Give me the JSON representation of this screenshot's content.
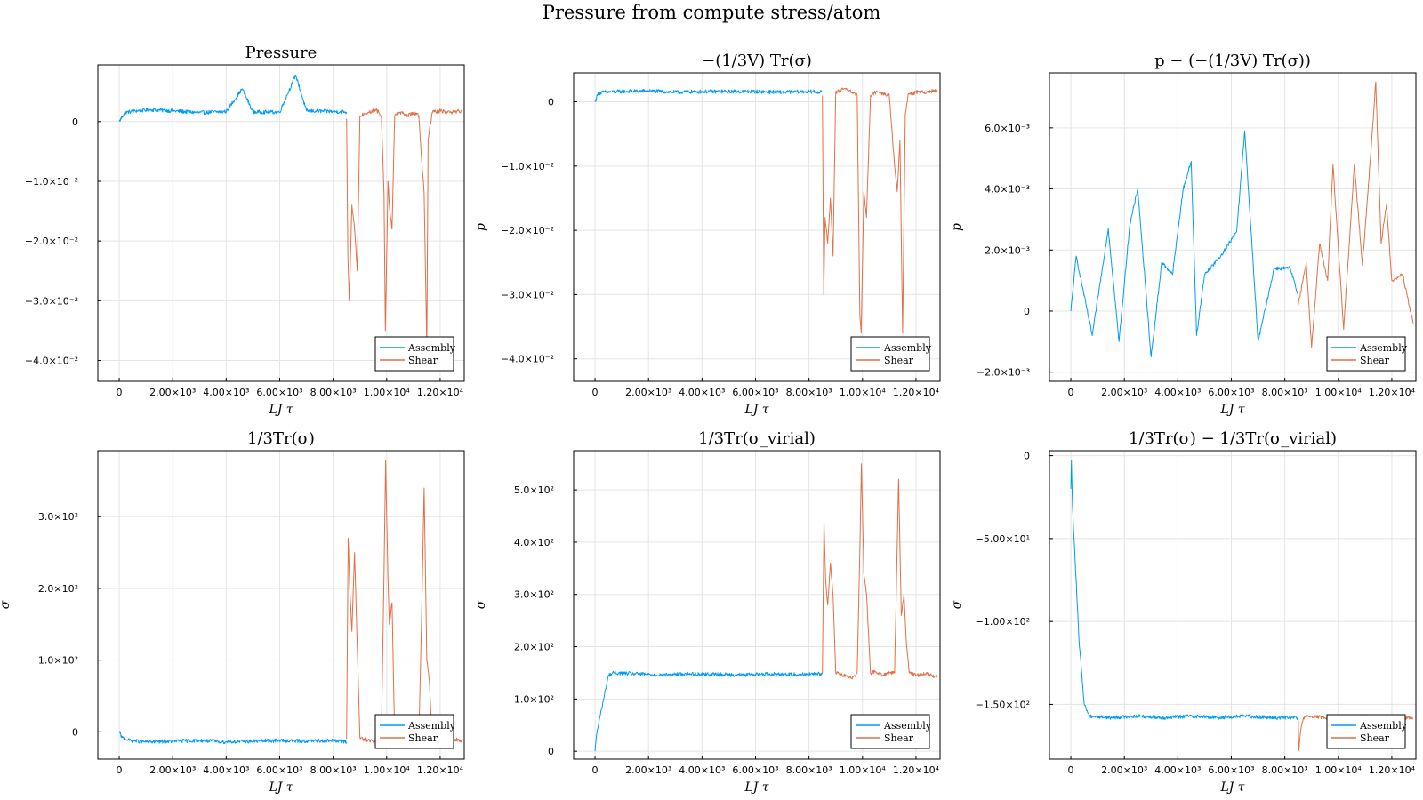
{
  "figure_title": "Pressure from compute stress/atom",
  "colors": {
    "Assembly": "#009af9",
    "Shear": "#e26f46",
    "grid": "#e5e5e5",
    "frame": "#000000"
  },
  "chart_data": [
    {
      "type": "line",
      "title": "Pressure",
      "xlabel": "LJ τ",
      "ylabel": "",
      "xlim": [
        -800,
        12900
      ],
      "ylim": [
        -0.0435,
        0.0095
      ],
      "xticks": [
        0,
        2000,
        4000,
        6000,
        8000,
        10000,
        12000
      ],
      "xtick_labels": [
        "0",
        "2.00×10³",
        "4.00×10³",
        "6.00×10³",
        "8.00×10³",
        "1.00×10⁴",
        "1.20×10⁴"
      ],
      "yticks": [
        0,
        -0.01,
        -0.02,
        -0.03,
        -0.04
      ],
      "ytick_labels": [
        "0",
        "−1.0×10⁻²",
        "−2.0×10⁻²",
        "−3.0×10⁻²",
        "−4.0×10⁻²"
      ],
      "grid": true,
      "legend": "bottom-right",
      "series": [
        {
          "name": "Assembly",
          "x": [
            0,
            200,
            600,
            1200,
            2000,
            3000,
            4000,
            4600,
            5000,
            6000,
            6600,
            7000,
            8000,
            8500
          ],
          "y": [
            0.0,
            0.0015,
            0.0018,
            0.002,
            0.0018,
            0.0015,
            0.0017,
            0.0055,
            0.0016,
            0.0016,
            0.0078,
            0.0018,
            0.0017,
            0.0016
          ]
        },
        {
          "name": "Shear",
          "x": [
            8500,
            8550,
            8600,
            8700,
            8800,
            8900,
            9000,
            9300,
            9600,
            9800,
            9900,
            9950,
            10050,
            10100,
            10200,
            10300,
            10500,
            10800,
            11000,
            11200,
            11300,
            11400,
            11500,
            11550,
            11700,
            12000,
            12400,
            12800
          ],
          "y": [
            0.0005,
            -0.023,
            -0.03,
            -0.014,
            -0.018,
            -0.025,
            0.001,
            0.0015,
            0.002,
            0.001,
            -0.012,
            -0.035,
            -0.01,
            -0.014,
            -0.018,
            0.001,
            0.0015,
            0.001,
            0.0015,
            0.001,
            -0.006,
            -0.012,
            -0.038,
            -0.003,
            0.0015,
            0.0018,
            0.0015,
            0.0018
          ]
        }
      ]
    },
    {
      "type": "line",
      "title": "−(1/3V) Tr(σ)",
      "xlabel": "LJ τ",
      "ylabel": "p",
      "xlim": [
        -800,
        12900
      ],
      "ylim": [
        -0.0435,
        0.0045
      ],
      "xticks": [
        0,
        2000,
        4000,
        6000,
        8000,
        10000,
        12000
      ],
      "xtick_labels": [
        "0",
        "2.00×10³",
        "4.00×10³",
        "6.00×10³",
        "8.00×10³",
        "1.00×10⁴",
        "1.20×10⁴"
      ],
      "yticks": [
        0,
        -0.01,
        -0.02,
        -0.03,
        -0.04
      ],
      "ytick_labels": [
        "0",
        "−1.0×10⁻²",
        "−2.0×10⁻²",
        "−3.0×10⁻²",
        "−4.0×10⁻²"
      ],
      "grid": true,
      "legend": "bottom-right",
      "series": [
        {
          "name": "Assembly",
          "x": [
            0,
            100,
            300,
            1000,
            2000,
            3000,
            4000,
            5000,
            6000,
            7000,
            8000,
            8500
          ],
          "y": [
            0.0,
            0.0012,
            0.0015,
            0.0016,
            0.0017,
            0.0015,
            0.0016,
            0.0016,
            0.0016,
            0.0015,
            0.0016,
            0.0015
          ]
        },
        {
          "name": "Shear",
          "x": [
            8500,
            8550,
            8600,
            8700,
            8800,
            8900,
            9000,
            9300,
            9600,
            9800,
            9900,
            9950,
            10050,
            10150,
            10300,
            10500,
            10800,
            11000,
            11200,
            11300,
            11400,
            11500,
            11600,
            11700,
            12000,
            12400,
            12800
          ],
          "y": [
            0.001,
            -0.03,
            -0.018,
            -0.022,
            -0.015,
            -0.024,
            0.0015,
            0.002,
            0.0015,
            0.001,
            -0.033,
            -0.036,
            -0.014,
            -0.018,
            0.001,
            0.0015,
            0.0012,
            0.001,
            -0.01,
            -0.014,
            -0.006,
            -0.036,
            -0.002,
            0.001,
            0.0015,
            0.0015,
            0.0018
          ]
        }
      ]
    },
    {
      "type": "line",
      "title": "p − (−(1/3V) Tr(σ))",
      "xlabel": "LJ τ",
      "ylabel": "p",
      "xlim": [
        -800,
        12900
      ],
      "ylim": [
        -0.0023,
        0.0078
      ],
      "xticks": [
        0,
        2000,
        4000,
        6000,
        8000,
        10000,
        12000
      ],
      "xtick_labels": [
        "0",
        "2.00×10³",
        "4.00×10³",
        "6.00×10³",
        "8.00×10³",
        "1.00×10⁴",
        "1.20×10⁴"
      ],
      "yticks": [
        0.006,
        0.004,
        0.002,
        0,
        -0.002
      ],
      "ytick_labels": [
        "6.0×10⁻³",
        "4.0×10⁻³",
        "2.0×10⁻³",
        "0",
        "−2.0×10⁻³"
      ],
      "grid": true,
      "legend": "bottom-right",
      "series": [
        {
          "name": "Assembly",
          "x": [
            0,
            200,
            800,
            1400,
            1800,
            2200,
            2500,
            3000,
            3400,
            3800,
            4200,
            4500,
            4700,
            5000,
            5600,
            6200,
            6500,
            7000,
            7600,
            8200,
            8500
          ],
          "y": [
            0.0,
            0.0018,
            -0.0008,
            0.0027,
            -0.001,
            0.0028,
            0.004,
            -0.0015,
            0.0016,
            0.0012,
            0.004,
            0.0049,
            -0.0008,
            0.0012,
            0.0018,
            0.0026,
            0.0059,
            -0.001,
            0.0014,
            0.0014,
            0.0005
          ]
        },
        {
          "name": "Shear",
          "x": [
            8500,
            8800,
            9000,
            9300,
            9600,
            9800,
            10200,
            10600,
            10900,
            11200,
            11400,
            11600,
            11800,
            12000,
            12400,
            12800
          ],
          "y": [
            0.0002,
            0.0016,
            -0.0012,
            0.0022,
            0.001,
            0.0048,
            -0.0006,
            0.0048,
            0.0015,
            0.005,
            0.0075,
            0.0022,
            0.0035,
            0.001,
            0.0012,
            -0.0004
          ]
        }
      ]
    },
    {
      "type": "line",
      "title": "1/3Tr(σ)",
      "xlabel": "LJ τ",
      "ylabel": "σ",
      "xlim": [
        -800,
        12900
      ],
      "ylim": [
        -38,
        392
      ],
      "xticks": [
        0,
        2000,
        4000,
        6000,
        8000,
        10000,
        12000
      ],
      "xtick_labels": [
        "0",
        "2.00×10³",
        "4.00×10³",
        "6.00×10³",
        "8.00×10³",
        "1.00×10⁴",
        "1.20×10⁴"
      ],
      "yticks": [
        0,
        100,
        200,
        300
      ],
      "ytick_labels": [
        "0",
        "1.0×10²",
        "2.0×10²",
        "3.0×10²"
      ],
      "grid": true,
      "legend": "bottom-right",
      "series": [
        {
          "name": "Assembly",
          "x": [
            0,
            100,
            400,
            1000,
            2000,
            3000,
            4000,
            5000,
            6000,
            7000,
            8000,
            8500
          ],
          "y": [
            0,
            -8,
            -12,
            -14,
            -13,
            -12,
            -14,
            -13,
            -12,
            -13,
            -12,
            -14
          ]
        },
        {
          "name": "Shear",
          "x": [
            8500,
            8560,
            8620,
            8700,
            8800,
            8900,
            9000,
            9300,
            9600,
            9800,
            9900,
            9960,
            10050,
            10100,
            10200,
            10300,
            10500,
            10800,
            11000,
            11200,
            11300,
            11400,
            11500,
            11600,
            11700,
            12000,
            12400,
            12800
          ],
          "y": [
            -10,
            270,
            200,
            140,
            250,
            120,
            -8,
            -12,
            -14,
            -10,
            220,
            378,
            210,
            150,
            180,
            -10,
            -12,
            -14,
            -12,
            -10,
            150,
            340,
            100,
            70,
            -10,
            -12,
            -10,
            -12
          ]
        }
      ]
    },
    {
      "type": "line",
      "title": "1/3Tr(σ_virial)",
      "xlabel": "LJ τ",
      "ylabel": "σ",
      "xlim": [
        -800,
        12900
      ],
      "ylim": [
        -15,
        575
      ],
      "xticks": [
        0,
        2000,
        4000,
        6000,
        8000,
        10000,
        12000
      ],
      "xtick_labels": [
        "0",
        "2.00×10³",
        "4.00×10³",
        "6.00×10³",
        "8.00×10³",
        "1.00×10⁴",
        "1.20×10⁴"
      ],
      "yticks": [
        0,
        100,
        200,
        300,
        400,
        500
      ],
      "ytick_labels": [
        "0",
        "1.0×10²",
        "2.0×10²",
        "3.0×10²",
        "4.0×10²",
        "5.0×10²"
      ],
      "grid": true,
      "legend": "bottom-right",
      "series": [
        {
          "name": "Assembly",
          "x": [
            0,
            50,
            200,
            400,
            500,
            700,
            1500,
            2500,
            3500,
            4500,
            5500,
            6500,
            7500,
            8500
          ],
          "y": [
            0,
            30,
            70,
            120,
            145,
            150,
            148,
            146,
            148,
            147,
            146,
            148,
            147,
            148
          ]
        },
        {
          "name": "Shear",
          "x": [
            8500,
            8560,
            8620,
            8700,
            8800,
            8900,
            9000,
            9300,
            9600,
            9800,
            9900,
            9960,
            10050,
            10150,
            10300,
            10500,
            10800,
            11000,
            11200,
            11350,
            11450,
            11550,
            11650,
            11750,
            12000,
            12400,
            12800
          ],
          "y": [
            150,
            440,
            330,
            280,
            360,
            300,
            150,
            145,
            140,
            150,
            380,
            550,
            340,
            300,
            150,
            152,
            145,
            150,
            150,
            520,
            260,
            300,
            200,
            150,
            145,
            148,
            142
          ]
        }
      ]
    },
    {
      "type": "line",
      "title": "1/3Tr(σ) − 1/3Tr(σ_virial)",
      "xlabel": "LJ τ",
      "ylabel": "σ",
      "xlim": [
        -800,
        12900
      ],
      "ylim": [
        -183,
        3
      ],
      "xticks": [
        0,
        2000,
        4000,
        6000,
        8000,
        10000,
        12000
      ],
      "xtick_labels": [
        "0",
        "2.00×10³",
        "4.00×10³",
        "6.00×10³",
        "8.00×10³",
        "1.00×10⁴",
        "1.20×10⁴"
      ],
      "yticks": [
        0,
        -50,
        -100,
        -150
      ],
      "ytick_labels": [
        "0",
        "−5.00×10¹",
        "−1.00×10²",
        "−1.50×10²"
      ],
      "grid": true,
      "legend": "bottom-right",
      "series": [
        {
          "name": "Assembly",
          "x": [
            0,
            20,
            60,
            150,
            300,
            500,
            700,
            1500,
            2500,
            3500,
            4500,
            5500,
            6500,
            7500,
            8500
          ],
          "y": [
            -20,
            -3,
            -30,
            -60,
            -110,
            -150,
            -157,
            -158,
            -157,
            -158,
            -157,
            -158,
            -157,
            -158,
            -158
          ]
        },
        {
          "name": "Shear",
          "x": [
            8500,
            8520,
            8600,
            8700,
            9000,
            9500,
            10000,
            10500,
            11000,
            11500,
            12000,
            12500,
            12800
          ],
          "y": [
            -158,
            -178,
            -165,
            -158,
            -157,
            -158,
            -157,
            -158,
            -157,
            -158,
            -157,
            -158,
            -158
          ]
        }
      ]
    }
  ]
}
